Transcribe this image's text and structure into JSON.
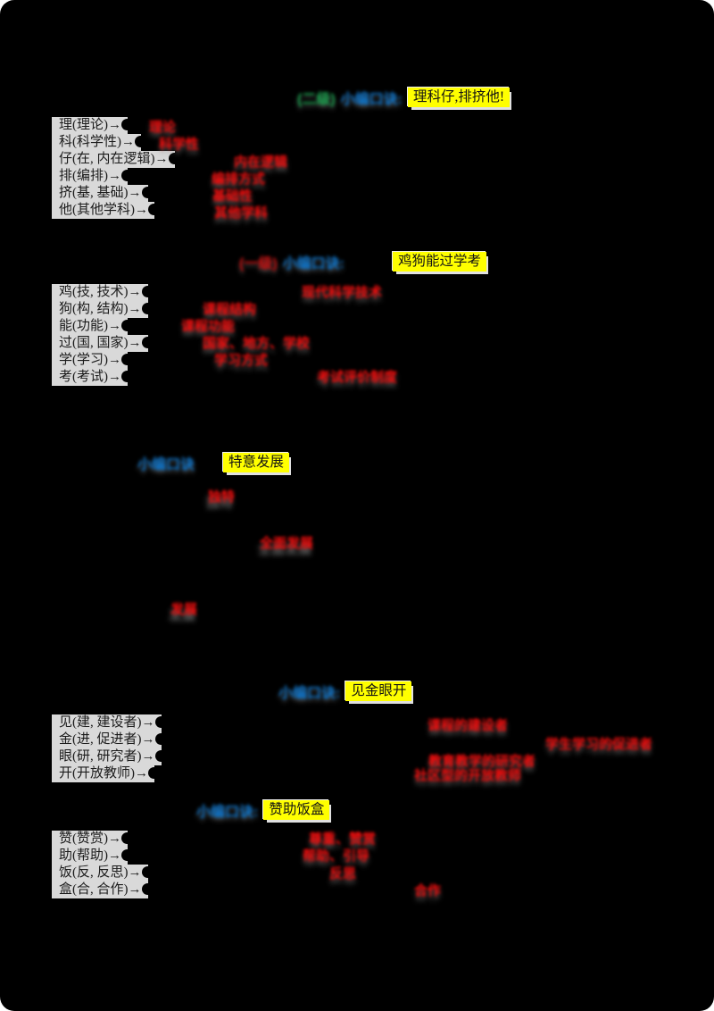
{
  "document": {
    "kind": "study-notes-mnemonics"
  },
  "colors": {
    "page_bg": "#000000",
    "label_bg": "#d9d9d9",
    "label_text": "#1b1b1b",
    "answer_red": "#f20d0d",
    "heading_blue": "#0b72c8",
    "heading_green": "#16a24c",
    "heading_red": "#c90b0b",
    "highlight_bg": "#ffff00",
    "highlight_text": "#141414"
  },
  "sections": [
    {
      "heading": {
        "prefix": "(二级)",
        "label": "小编口诀:",
        "mnemonic": "理科仔,排挤他!"
      },
      "rows": [
        {
          "label": "理(理论)→",
          "answer": "理论"
        },
        {
          "label": "科(科学性)→",
          "answer": "科学性"
        },
        {
          "label": "仔(在, 内在逻辑)→",
          "answer": "内在逻辑"
        },
        {
          "label": "排(编排)→",
          "answer": "编排方式"
        },
        {
          "label": "挤(基, 基础)→",
          "answer": "基础性"
        },
        {
          "label": "他(其他学科)→",
          "answer": "其他学科"
        }
      ]
    },
    {
      "heading": {
        "prefix": "(一级)",
        "label": "小编口诀:",
        "mnemonic": "鸡狗能过学考"
      },
      "rows": [
        {
          "label": "鸡(技, 技术)→",
          "answer": "现代科学技术"
        },
        {
          "label": "狗(构, 结构)→",
          "answer": "课程结构"
        },
        {
          "label": "能(功能)→",
          "answer": "课程功能"
        },
        {
          "label": "过(国, 国家)→",
          "answer": "国家、地方、学校"
        },
        {
          "label": "学(学习)→",
          "answer": "学习方式"
        },
        {
          "label": "考(考试)→",
          "answer": "考试评价制度"
        }
      ]
    },
    {
      "heading": {
        "label": "小编口诀",
        "mnemonic": "特意发展"
      },
      "floats": [
        {
          "answer": "独特"
        },
        {
          "answer": "全面发展"
        },
        {
          "answer": "发展"
        }
      ]
    },
    {
      "heading": {
        "label": "小编口诀:",
        "mnemonic": "见金眼开"
      },
      "rows": [
        {
          "label": "见(建, 建设者)→",
          "answer": "课程的建设者"
        },
        {
          "label": "金(进, 促进者)→",
          "answer": "学生学习的促进者"
        },
        {
          "label": "眼(研, 研究者)→",
          "answer": "教育教学的研究者"
        },
        {
          "label": "开(开放教师)→",
          "answer": "社区型的开放教师"
        }
      ]
    },
    {
      "heading": {
        "label": "小编口诀:",
        "mnemonic": "赞助饭盒"
      },
      "rows": [
        {
          "label": "赞(赞赏)→",
          "answer": "尊重、赞赏"
        },
        {
          "label": "助(帮助)→",
          "answer": "帮助、引导"
        },
        {
          "label": "饭(反, 反思)→",
          "answer": "反思"
        },
        {
          "label": "盒(合, 合作)→",
          "answer": "合作"
        }
      ]
    }
  ]
}
